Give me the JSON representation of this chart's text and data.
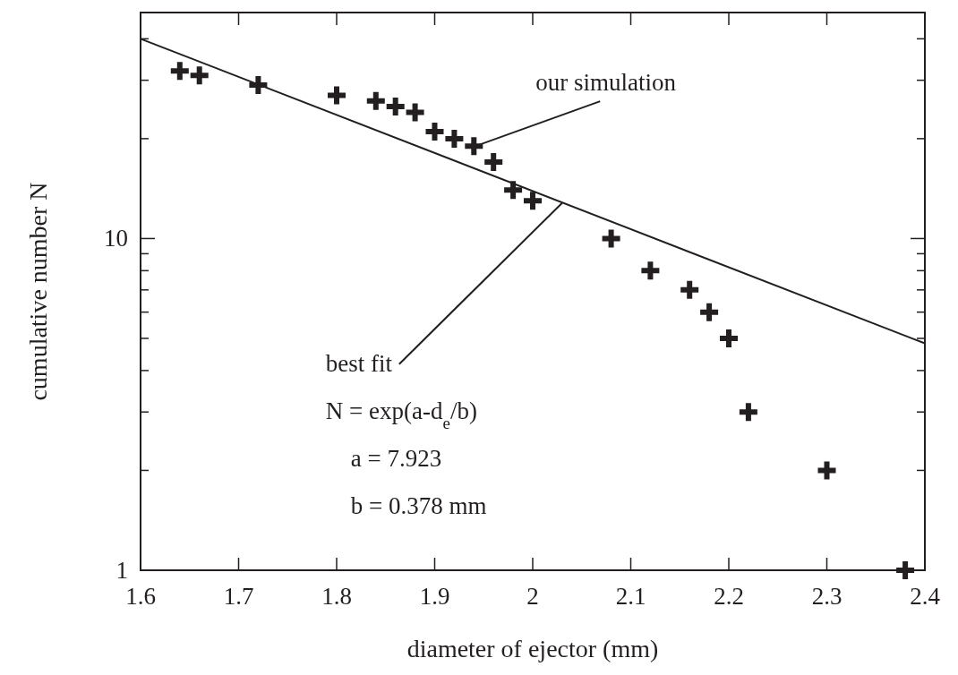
{
  "chart_data": {
    "type": "scatter",
    "xlabel": "diameter of ejector (mm)",
    "ylabel": "cumulative number N",
    "log": "y",
    "marker": "cross",
    "grid": false,
    "xlim": [
      1.6,
      2.4
    ],
    "xticks": [
      1.6,
      1.7,
      1.8,
      1.9,
      2,
      2.1,
      2.2,
      2.3,
      2.4
    ],
    "ylim": [
      1,
      48
    ],
    "yticks": [
      1,
      {
        "value": 2,
        "label": null
      },
      {
        "value": 3,
        "label": null
      },
      {
        "value": 4,
        "label": null
      },
      {
        "value": 5,
        "label": null
      },
      {
        "value": 6,
        "label": null
      },
      {
        "value": 7,
        "label": null
      },
      {
        "value": 8,
        "label": null
      },
      {
        "value": 9,
        "label": null
      },
      10,
      {
        "value": 20,
        "label": null
      },
      {
        "value": 30,
        "label": null
      },
      {
        "value": 40,
        "label": null
      }
    ],
    "series": [
      {
        "color": "#231f20",
        "x": [
          1.64,
          1.66,
          1.72,
          1.8,
          1.84,
          1.86,
          1.88,
          1.9,
          1.92,
          1.94,
          1.96,
          1.98,
          2.0,
          2.08,
          2.12,
          2.16,
          2.18,
          2.2,
          2.22,
          2.3,
          2.38
        ],
        "values": [
          32,
          31,
          29,
          27,
          26,
          25,
          24,
          21,
          20,
          19,
          17,
          14,
          13,
          10,
          8,
          7,
          6,
          5,
          3,
          2,
          1
        ]
      },
      {
        "type": "line",
        "color": "#231f20",
        "marker": "none",
        "line_style": "solid",
        "x": [
          1.6,
          2.4
        ],
        "values": [
          40.0,
          4.83
        ]
      }
    ],
    "annotations": [
      {
        "text": "our simulation",
        "x": 1.94,
        "y": 19
      },
      {
        "text": "best fit",
        "x": 2.03,
        "y": 12.8
      },
      "N = exp(a-d$_{e}$/b)",
      "a = 7.923",
      "b = 0.378 mm"
    ]
  }
}
